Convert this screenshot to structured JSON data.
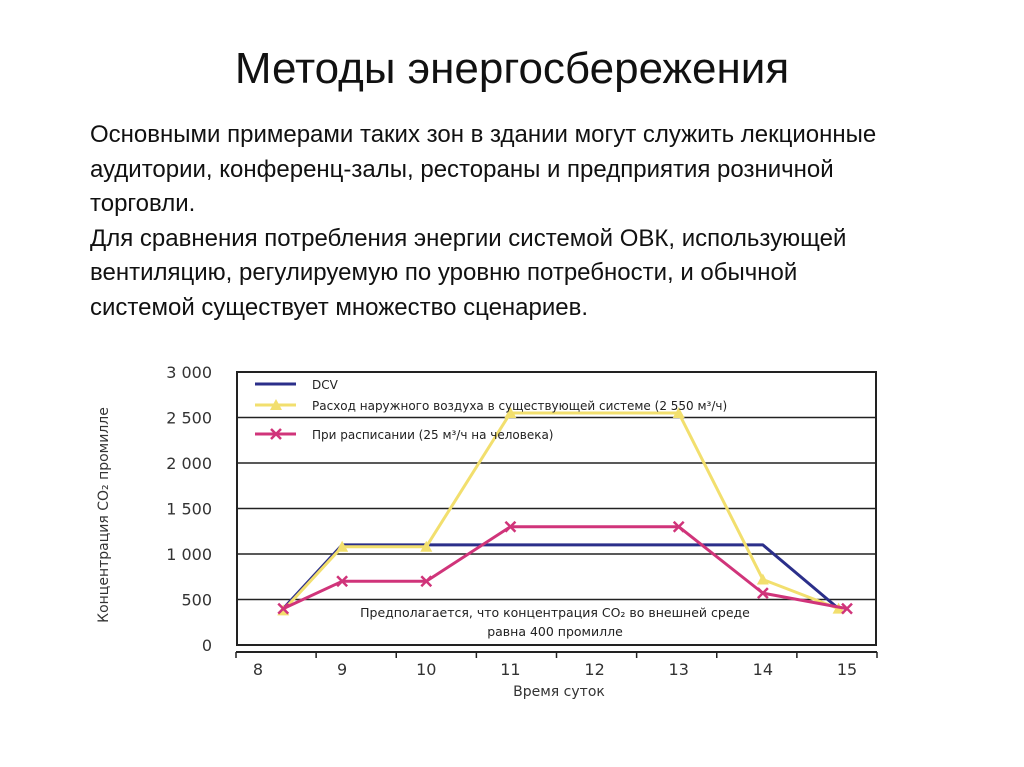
{
  "slide": {
    "title": "Методы энергосбережения",
    "paragraphs": [
      "Основными примерами таких зон в здании могут служить лекционные аудитории, конференц-залы, рестораны и предприятия розничной торговли.",
      "Для сравнения потребления энергии системой ОВК, использующей вентиляцию, регулируемую по уровню потребности, и обычной системой существует множество сценариев."
    ]
  },
  "chart_data": {
    "type": "line",
    "xlabel": "Время суток",
    "ylabel": "Концентрация CO₂ промилле",
    "xlim": [
      8,
      15
    ],
    "ylim": [
      0,
      3000
    ],
    "x_ticks": [
      8,
      9,
      10,
      11,
      12,
      13,
      14,
      15
    ],
    "y_ticks": [
      {
        "value": 0,
        "label": "0"
      },
      {
        "value": 500,
        "label": "500"
      },
      {
        "value": 1000,
        "label": "1 000"
      },
      {
        "value": 1500,
        "label": "1 500"
      },
      {
        "value": 2000,
        "label": "2 000"
      },
      {
        "value": 2500,
        "label": "2 500"
      },
      {
        "value": 3000,
        "label": "3 000"
      }
    ],
    "grid": "horizontal",
    "legend_position": "top-left",
    "annotation": [
      "Предполагается, что концентрация CO₂ во внешней среде",
      "равна 400 промилле"
    ],
    "series": [
      {
        "name": "DCV",
        "color": "#2b2f8a",
        "marker": "none",
        "points": [
          [
            8.3,
            400
          ],
          [
            9,
            1100
          ],
          [
            14,
            1100
          ],
          [
            14.9,
            400
          ]
        ]
      },
      {
        "name": "Расход наружного воздуха в существующей системе (2 550 м³/ч)",
        "color": "#f2df6e",
        "marker": "triangle",
        "points": [
          [
            8.3,
            380
          ],
          [
            9,
            1080
          ],
          [
            10,
            1080
          ],
          [
            11,
            2550
          ],
          [
            13,
            2550
          ],
          [
            14,
            720
          ],
          [
            14.9,
            400
          ]
        ]
      },
      {
        "name": "При расписании (25 м³/ч на человека)",
        "color": "#d0347a",
        "marker": "x",
        "points": [
          [
            8.3,
            400
          ],
          [
            9,
            700
          ],
          [
            10,
            700
          ],
          [
            11,
            1300
          ],
          [
            13,
            1300
          ],
          [
            14,
            570
          ],
          [
            15,
            400
          ]
        ]
      }
    ]
  }
}
